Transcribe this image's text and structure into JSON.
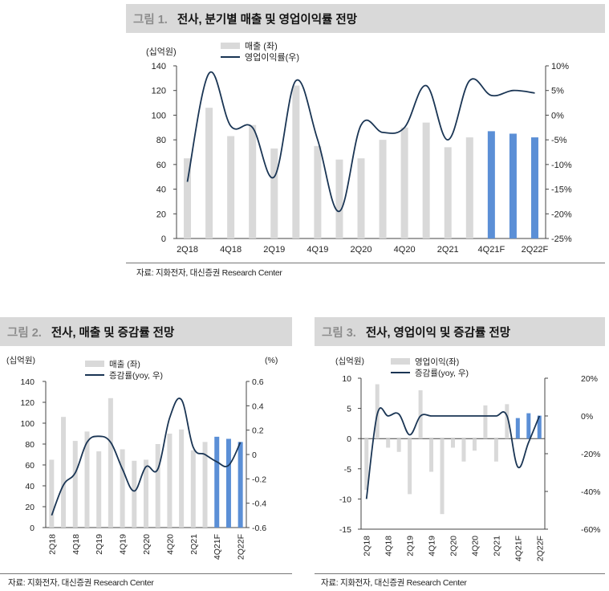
{
  "figures": [
    {
      "id": "fig1",
      "label": "그림 1.",
      "title": "전사, 분기별 매출 및 영업이익률 전망",
      "source": "자료: 지화전자, 대신증권 Research Center",
      "chart_data": {
        "type": "bar",
        "x": [
          "2Q18",
          "3Q18",
          "4Q18",
          "1Q19",
          "2Q19",
          "3Q19",
          "4Q19",
          "1Q20",
          "2Q20",
          "3Q20",
          "4Q20",
          "1Q21",
          "2Q21",
          "3Q21",
          "4Q21F",
          "1Q22F",
          "2Q22F"
        ],
        "x_tick_labels": [
          "2Q18",
          "4Q18",
          "2Q19",
          "4Q19",
          "2Q20",
          "4Q20",
          "2Q21",
          "4Q21F",
          "2Q22F"
        ],
        "forecast_from_index": 14,
        "left_axis": {
          "unit": "(십억원)",
          "min": 0,
          "max": 140,
          "step": 20,
          "ticks": [
            "0",
            "20",
            "40",
            "60",
            "80",
            "100",
            "120",
            "140"
          ]
        },
        "right_axis": {
          "unit": "",
          "min": -25,
          "max": 10,
          "step": 5,
          "ticks": [
            "-25%",
            "-20%",
            "-15%",
            "-10%",
            "-5%",
            "0%",
            "5%",
            "10%"
          ]
        },
        "series": [
          {
            "name": "매출 (좌)",
            "type": "bar",
            "axis": "left",
            "values": [
              65,
              106,
              83,
              92,
              73,
              124,
              75,
              64,
              65,
              80,
              90,
              94,
              74,
              82,
              87,
              85,
              82
            ]
          },
          {
            "name": "영업이익률(우)",
            "type": "line",
            "axis": "right",
            "values": [
              -13.5,
              8.5,
              -2.2,
              -2.5,
              -12.5,
              7.0,
              -5.0,
              -19.5,
              -2.0,
              -3.5,
              -2.5,
              6.0,
              -5.0,
              7.0,
              4.0,
              5.0,
              4.5
            ]
          }
        ],
        "legend": [
          "매출 (좌)",
          "영업이익률(우)"
        ],
        "colors": {
          "bar": "#d9d9d9",
          "bar_forecast": "#5b8fd6",
          "line": "#1a3554"
        }
      }
    },
    {
      "id": "fig2",
      "label": "그림 2.",
      "title": "전사, 매출 및 증감률 전망",
      "source": "자료: 지화전자, 대신증권 Research Center",
      "chart_data": {
        "type": "bar",
        "x": [
          "2Q18",
          "3Q18",
          "4Q18",
          "1Q19",
          "2Q19",
          "3Q19",
          "4Q19",
          "1Q20",
          "2Q20",
          "3Q20",
          "4Q20",
          "1Q21",
          "2Q21",
          "3Q21",
          "4Q21F",
          "1Q22F",
          "2Q22F"
        ],
        "x_tick_labels": [
          "2Q18",
          "4Q18",
          "2Q19",
          "4Q19",
          "2Q20",
          "4Q20",
          "2Q21",
          "4Q21F",
          "2Q22F"
        ],
        "forecast_from_index": 14,
        "left_axis": {
          "unit": "(십억원)",
          "min": 0,
          "max": 140,
          "step": 20,
          "ticks": [
            "0",
            "20",
            "40",
            "60",
            "80",
            "100",
            "120",
            "140"
          ]
        },
        "right_axis": {
          "unit": "(%)",
          "min": -0.6,
          "max": 0.6,
          "step": 0.2,
          "ticks": [
            "-0.6",
            "-0.4",
            "-0.2",
            "0",
            "0.2",
            "0.4",
            "0.6"
          ]
        },
        "series": [
          {
            "name": "매출 (좌)",
            "type": "bar",
            "axis": "left",
            "values": [
              65,
              106,
              83,
              92,
              73,
              124,
              75,
              64,
              65,
              80,
              90,
              94,
              74,
              82,
              87,
              85,
              82
            ]
          },
          {
            "name": "증감률(yoy, 우)",
            "type": "line",
            "axis": "right",
            "values": [
              -0.5,
              -0.25,
              -0.15,
              0.1,
              0.15,
              0.1,
              -0.12,
              -0.3,
              -0.1,
              -0.12,
              0.3,
              0.45,
              0.06,
              0.0,
              -0.06,
              -0.09,
              0.1
            ]
          }
        ],
        "legend": [
          "매출 (좌)",
          "증감률(yoy, 우)"
        ],
        "colors": {
          "bar": "#d9d9d9",
          "bar_forecast": "#5b8fd6",
          "line": "#1a3554"
        }
      }
    },
    {
      "id": "fig3",
      "label": "그림 3.",
      "title": "전사, 영업이익 및 증감률 전망",
      "source": "자료: 지화전자, 대신증권 Research Center",
      "chart_data": {
        "type": "bar",
        "x": [
          "2Q18",
          "3Q18",
          "4Q18",
          "1Q19",
          "2Q19",
          "3Q19",
          "4Q19",
          "1Q20",
          "2Q20",
          "3Q20",
          "4Q20",
          "1Q21",
          "2Q21",
          "3Q21",
          "4Q21F",
          "1Q22F",
          "2Q22F"
        ],
        "x_tick_labels": [
          "2Q18",
          "4Q18",
          "2Q19",
          "4Q19",
          "2Q20",
          "4Q20",
          "2Q21",
          "4Q21F",
          "2Q22F"
        ],
        "forecast_from_index": 14,
        "left_axis": {
          "unit": "(십억원)",
          "min": -15,
          "max": 10,
          "step": 5,
          "ticks": [
            "-15",
            "-10",
            "-5",
            "0",
            "5",
            "10"
          ]
        },
        "right_axis": {
          "unit": "",
          "min": -60,
          "max": 20,
          "step": 20,
          "ticks": [
            "-60%",
            "-40%",
            "-20%",
            "0%",
            "20%"
          ]
        },
        "series": [
          {
            "name": "영업이익(좌)",
            "type": "bar",
            "axis": "left",
            "values": [
              -8.5,
              9.0,
              -1.5,
              -2.2,
              -9.2,
              8.0,
              -5.5,
              -12.5,
              -1.5,
              -3.8,
              -2.0,
              5.5,
              -3.8,
              5.7,
              3.4,
              4.2,
              3.8
            ]
          },
          {
            "name": "증감률(yoy, 우)",
            "type": "line",
            "axis": "right",
            "values": [
              -44,
              1,
              0,
              1,
              -10,
              0,
              0,
              0,
              0,
              0,
              0,
              0,
              0,
              0,
              -27,
              -14,
              0
            ]
          }
        ],
        "legend": [
          "영업이익(좌)",
          "증감률(yoy, 우)"
        ],
        "colors": {
          "bar": "#d9d9d9",
          "bar_forecast": "#5b8fd6",
          "line": "#1a3554"
        }
      }
    }
  ]
}
